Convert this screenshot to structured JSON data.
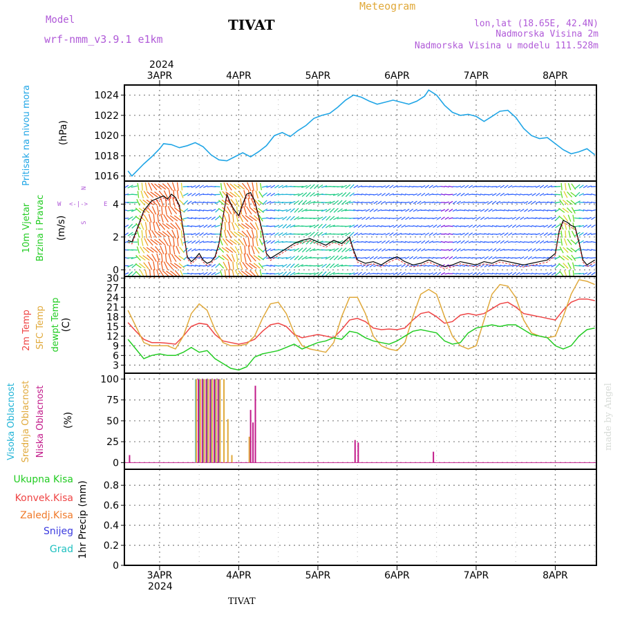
{
  "header": {
    "model_label": "Model",
    "model_name": "wrf-nmm_v3.9.1 e1km",
    "station": "TIVAT",
    "title": "Meteogram",
    "lonlat": "lon,lat (18.65E, 42.4N)",
    "elevation": "Nadmorska Visina 2m",
    "model_elevation": "Nadmorska Visina u modelu 111.528m"
  },
  "footer": {
    "station": "TIVAT",
    "credit": "made by Angel"
  },
  "colors": {
    "pressure": "#1fa5e6",
    "temp2m": "#ef4444",
    "sfc": "#e0a93a",
    "dewpt": "#22cc22",
    "visoka": "#1fb3d6",
    "srednja": "#e0a93a",
    "niska": "#c21a8a",
    "ukupna": "#22cc22",
    "konvek": "#ef4444",
    "zaledj": "#f07a2a",
    "snijeg": "#3a3adf",
    "grad": "#1fc0c0",
    "purple": "#b05ad8"
  },
  "chart_data": [
    {
      "type": "line",
      "panel": "pressure",
      "ylabel": "(hPa)",
      "side_label": "Pritisak na nivou mora",
      "x_axis": {
        "year": "2024",
        "ticks": [
          "3APR",
          "4APR",
          "5APR",
          "6APR",
          "7APR",
          "8APR"
        ]
      },
      "ylim": [
        1015.5,
        1025.0
      ],
      "yticks": [
        "1016",
        "1018",
        "1020",
        "1022",
        "1024"
      ],
      "grid": true,
      "series": [
        {
          "x": [
            2.6,
            2.65,
            2.7,
            2.8,
            2.9,
            3.0,
            3.05,
            3.15,
            3.25,
            3.35,
            3.45,
            3.55,
            3.65,
            3.75,
            3.85,
            3.95,
            4.05,
            4.15,
            4.25,
            4.35,
            4.45,
            4.55,
            4.65,
            4.75,
            4.85,
            4.95,
            5.05,
            5.15,
            5.25,
            5.35,
            5.45,
            5.55,
            5.65,
            5.75,
            5.85,
            5.95,
            6.05,
            6.15,
            6.25,
            6.35,
            6.4,
            6.5,
            6.6,
            6.7,
            6.8,
            6.9,
            7.0,
            7.1,
            7.2,
            7.3,
            7.4,
            7.5,
            7.6,
            7.7,
            7.8,
            7.9,
            8.0,
            8.1,
            8.2,
            8.3,
            8.4,
            8.5
          ],
          "values": [
            1016.5,
            1016.0,
            1016.4,
            1017.2,
            1017.9,
            1018.7,
            1019.2,
            1019.1,
            1018.8,
            1019.0,
            1019.3,
            1018.9,
            1018.1,
            1017.6,
            1017.5,
            1017.9,
            1018.3,
            1017.9,
            1018.4,
            1019.0,
            1020.0,
            1020.3,
            1019.9,
            1020.5,
            1021.0,
            1021.7,
            1022.0,
            1022.2,
            1022.8,
            1023.5,
            1024.0,
            1023.8,
            1023.4,
            1023.1,
            1023.3,
            1023.5,
            1023.3,
            1023.1,
            1023.4,
            1023.9,
            1024.5,
            1024.0,
            1023.0,
            1022.3,
            1022.0,
            1022.1,
            1021.9,
            1021.4,
            1021.9,
            1022.4,
            1022.5,
            1021.8,
            1020.7,
            1020.0,
            1019.7,
            1019.8,
            1019.2,
            1018.6,
            1018.2,
            1018.4,
            1018.7,
            1018.1
          ]
        }
      ]
    },
    {
      "type": "line",
      "panel": "wind",
      "ylabel": "(m/s)",
      "side_label_1": "10m Vjetar",
      "side_label_2": "Brzina i Pravac",
      "compass": {
        "n": "N",
        "w": "W",
        "e": "E",
        "s": "S"
      },
      "ylim": [
        -0.4,
        5.4
      ],
      "yticks": [
        "0",
        "2",
        "4"
      ],
      "grid": true,
      "series": [
        {
          "name": "speed",
          "x": [
            2.6,
            2.65,
            2.7,
            2.8,
            2.9,
            3.0,
            3.05,
            3.1,
            3.15,
            3.2,
            3.25,
            3.3,
            3.35,
            3.4,
            3.45,
            3.5,
            3.55,
            3.6,
            3.65,
            3.7,
            3.75,
            3.8,
            3.85,
            3.9,
            3.95,
            4.0,
            4.05,
            4.1,
            4.15,
            4.2,
            4.25,
            4.3,
            4.35,
            4.4,
            4.5,
            4.6,
            4.7,
            4.8,
            4.9,
            5.0,
            5.1,
            5.2,
            5.3,
            5.4,
            5.45,
            5.5,
            5.6,
            5.7,
            5.8,
            5.9,
            6.0,
            6.1,
            6.2,
            6.3,
            6.4,
            6.5,
            6.6,
            6.7,
            6.8,
            6.9,
            7.0,
            7.1,
            7.2,
            7.3,
            7.4,
            7.5,
            7.6,
            7.7,
            7.8,
            7.9,
            8.0,
            8.05,
            8.1,
            8.15,
            8.2,
            8.25,
            8.3,
            8.35,
            8.4,
            8.5
          ],
          "values": [
            1.8,
            1.7,
            2.3,
            3.6,
            4.2,
            4.4,
            4.5,
            4.3,
            4.6,
            4.4,
            3.9,
            2.4,
            0.8,
            0.5,
            0.7,
            1.0,
            0.6,
            0.4,
            0.5,
            0.8,
            1.6,
            3.2,
            4.6,
            4.0,
            3.6,
            3.3,
            4.0,
            4.6,
            4.7,
            4.2,
            3.3,
            2.3,
            1.0,
            0.7,
            1.0,
            1.3,
            1.6,
            1.8,
            1.9,
            1.7,
            1.5,
            1.8,
            1.6,
            2.0,
            1.2,
            0.6,
            0.4,
            0.5,
            0.3,
            0.6,
            0.8,
            0.5,
            0.3,
            0.4,
            0.6,
            0.4,
            0.2,
            0.3,
            0.5,
            0.4,
            0.3,
            0.5,
            0.4,
            0.6,
            0.5,
            0.4,
            0.3,
            0.4,
            0.5,
            0.6,
            1.0,
            2.4,
            3.0,
            2.9,
            2.7,
            2.6,
            1.7,
            0.6,
            0.3,
            0.6
          ]
        }
      ]
    },
    {
      "type": "line",
      "panel": "temperature",
      "ylabel": "(C)",
      "side_labels": [
        "2m Temp",
        "SFC Temp",
        "dewpt Temp"
      ],
      "ylim": [
        0.5,
        30.5
      ],
      "yticks": [
        "3",
        "6",
        "9",
        "12",
        "15",
        "18",
        "21",
        "24",
        "27",
        "30"
      ],
      "grid": true,
      "x": [
        2.6,
        2.7,
        2.8,
        2.9,
        3.0,
        3.1,
        3.2,
        3.3,
        3.4,
        3.5,
        3.6,
        3.7,
        3.8,
        3.9,
        4.0,
        4.1,
        4.2,
        4.3,
        4.4,
        4.5,
        4.6,
        4.7,
        4.8,
        4.9,
        5.0,
        5.1,
        5.2,
        5.3,
        5.4,
        5.5,
        5.6,
        5.7,
        5.8,
        5.9,
        6.0,
        6.1,
        6.2,
        6.3,
        6.4,
        6.5,
        6.6,
        6.7,
        6.8,
        6.9,
        7.0,
        7.1,
        7.2,
        7.3,
        7.4,
        7.5,
        7.6,
        7.7,
        7.8,
        7.9,
        8.0,
        8.1,
        8.2,
        8.3,
        8.4,
        8.5
      ],
      "series": [
        {
          "name": "2m Temp",
          "values": [
            16.2,
            13.5,
            11.0,
            10.0,
            10.0,
            9.8,
            9.5,
            12.0,
            15.0,
            16.0,
            15.6,
            12.5,
            10.5,
            10.0,
            9.5,
            10.0,
            11.0,
            13.5,
            15.5,
            16.0,
            15.0,
            12.5,
            11.5,
            12.0,
            12.5,
            12.0,
            11.5,
            14.0,
            17.0,
            17.5,
            16.5,
            14.5,
            14.0,
            14.2,
            14.0,
            14.5,
            17.0,
            19.0,
            19.5,
            18.0,
            16.0,
            16.5,
            18.5,
            19.0,
            18.5,
            19.0,
            20.5,
            22.0,
            22.5,
            21.0,
            19.0,
            18.5,
            18.0,
            17.5,
            17.0,
            20.0,
            22.5,
            23.5,
            23.5,
            23.0
          ]
        },
        {
          "name": "SFC Temp",
          "values": [
            20.0,
            15.0,
            10.0,
            9.0,
            9.0,
            9.0,
            8.0,
            12.0,
            19.0,
            22.0,
            20.0,
            14.0,
            10.0,
            9.0,
            9.0,
            9.5,
            12.0,
            17.5,
            22.0,
            22.5,
            19.0,
            13.0,
            9.0,
            8.0,
            7.5,
            7.0,
            10.0,
            18.0,
            24.0,
            24.0,
            19.0,
            12.0,
            9.0,
            8.0,
            7.5,
            10.0,
            18.0,
            25.0,
            26.5,
            25.0,
            18.0,
            12.0,
            9.0,
            8.0,
            9.0,
            17.0,
            25.0,
            28.0,
            27.5,
            24.0,
            17.0,
            13.0,
            12.0,
            11.5,
            12.0,
            18.0,
            25.0,
            29.5,
            29.0,
            28.0
          ]
        },
        {
          "name": "dewpt Temp",
          "values": [
            11.0,
            8.0,
            5.0,
            6.0,
            6.5,
            6.0,
            6.0,
            7.0,
            8.5,
            7.0,
            7.5,
            5.0,
            3.5,
            2.0,
            1.5,
            2.5,
            5.5,
            6.5,
            7.0,
            7.5,
            8.5,
            9.5,
            8.0,
            9.0,
            10.0,
            10.5,
            11.5,
            11.0,
            13.5,
            13.0,
            11.5,
            10.5,
            10.0,
            9.5,
            10.5,
            12.0,
            13.5,
            14.0,
            13.5,
            13.0,
            10.5,
            9.5,
            10.0,
            13.0,
            14.5,
            15.0,
            15.5,
            15.0,
            15.5,
            15.5,
            14.0,
            12.5,
            12.0,
            11.5,
            9.0,
            8.0,
            9.0,
            12.0,
            14.0,
            14.5
          ]
        }
      ]
    },
    {
      "type": "bar",
      "panel": "cloud",
      "ylabel": "(%)",
      "side_labels": [
        "Visoka Oblacnost",
        "Srednja Oblacnost",
        "Niska Oblacnost"
      ],
      "ylim": [
        -8,
        107
      ],
      "yticks": [
        "0",
        "25",
        "50",
        "75",
        "100"
      ],
      "grid": true,
      "series": [
        {
          "name": "Visoka Oblacnost",
          "x": [
            3.47,
            3.52,
            3.57,
            3.62,
            3.67,
            3.72,
            3.77
          ],
          "values": [
            100,
            100,
            100,
            100,
            100,
            100,
            100
          ]
        },
        {
          "name": "Srednja Oblacnost",
          "x": [
            3.45,
            3.5,
            3.55,
            3.6,
            3.65,
            3.7,
            3.75,
            3.8,
            3.85,
            3.9,
            4.12
          ],
          "values": [
            100,
            100,
            100,
            100,
            100,
            100,
            100,
            100,
            52,
            9,
            31
          ]
        },
        {
          "name": "Niska Oblacnost",
          "x": [
            2.62,
            3.49,
            3.54,
            3.59,
            3.64,
            3.69,
            3.74,
            4.15,
            4.18,
            4.21,
            5.47,
            5.51,
            6.46
          ],
          "values": [
            9,
            100,
            100,
            100,
            100,
            100,
            100,
            63,
            48,
            92,
            27,
            24,
            13
          ]
        }
      ]
    },
    {
      "type": "bar",
      "panel": "precip",
      "ylabel": "1hr Precip (mm)",
      "side_labels": [
        "Ukupna Kisa",
        "Konvek.Kisa",
        "Zaledj.Kisa",
        "Snijeg",
        "Grad"
      ],
      "ylim": [
        0,
        0.96
      ],
      "yticks": [
        "0",
        "0.2",
        "0.4",
        "0.6",
        "0.8"
      ],
      "grid": true,
      "x_axis": {
        "year": "2024",
        "ticks": [
          "3APR",
          "4APR",
          "5APR",
          "6APR",
          "7APR",
          "8APR"
        ]
      },
      "series": []
    }
  ]
}
